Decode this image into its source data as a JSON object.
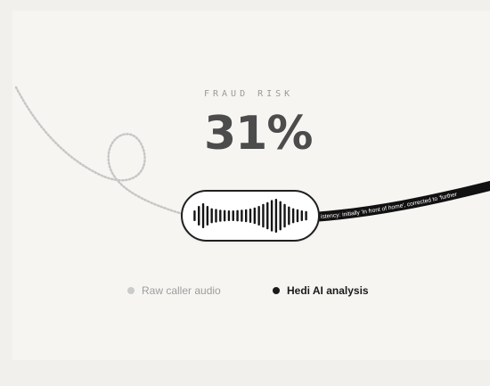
{
  "risk": {
    "label": "FRAUD RISK",
    "value": "31%"
  },
  "transcript_ribbon": {
    "text": "istency: initially 'in front of home', corrected to 'further"
  },
  "legend": {
    "raw_label": "Raw caller audio",
    "ai_label": "Hedi AI analysis"
  },
  "colors": {
    "background": "#f6f5f2",
    "ribbon": "#111111",
    "raw_dot": "#cbcbcb",
    "ai_dot": "#1a1a1a",
    "risk_text": "#4c4c4c"
  },
  "waveform": {
    "bar_levels": [
      0.3,
      0.55,
      0.7,
      0.55,
      0.42,
      0.38,
      0.34,
      0.32,
      0.3,
      0.3,
      0.32,
      0.34,
      0.36,
      0.4,
      0.46,
      0.55,
      0.66,
      0.76,
      0.88,
      0.95,
      0.82,
      0.66,
      0.52,
      0.42,
      0.36,
      0.3,
      0.26
    ]
  }
}
